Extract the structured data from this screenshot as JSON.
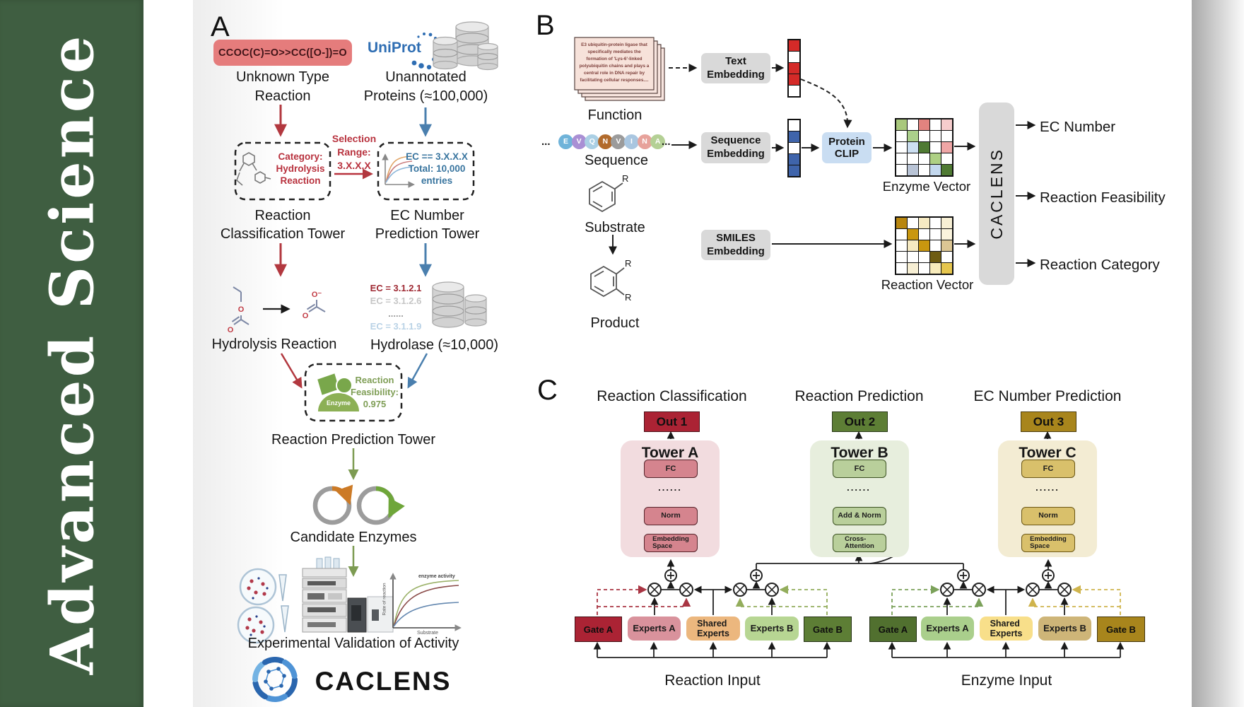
{
  "journal": {
    "name": "Advanced  Science"
  },
  "panelA": {
    "label": "A",
    "smiles": "CCOC(C)=O>>CC([O-])=O",
    "unknown_type": [
      "Unknown Type",
      "Reaction"
    ],
    "uniprot": "UniProt",
    "unannotated": [
      "Unannotated",
      "Proteins (≈100,000)"
    ],
    "selection": [
      "Selection",
      "Range:",
      "3.X.X.X"
    ],
    "classification_box": [
      "Category:",
      "Hydrolysis",
      "Reaction"
    ],
    "ec_box": [
      "EC == 3.X.X.X",
      "Total: 10,000",
      "entries"
    ],
    "classification_tower": [
      "Reaction",
      "Classification Tower"
    ],
    "prediction_tower": [
      "EC Number",
      "Prediction Tower"
    ],
    "hydrolysis_reaction": "Hydrolysis Reaction",
    "ec_list": [
      {
        "text": "EC = 3.1.2.1",
        "color": "#9e2832"
      },
      {
        "text": "EC = 3.1.2.6",
        "color": "#c6c6c6"
      },
      {
        "text": "......",
        "color": "#9a9a9a"
      },
      {
        "text": "EC = 3.1.1.9",
        "color": "#b9d2e6"
      }
    ],
    "hydrolase": "Hydrolase (≈10,000)",
    "enzyme_badge": "Enzyme",
    "feasibility": [
      "Reaction",
      "Feasibility:",
      "0.975"
    ],
    "reaction_prediction_tower": "Reaction Prediction Tower",
    "candidate_enzymes": "Candidate Enzymes",
    "validation": "Experimental Validation of Activity",
    "activity_plot": {
      "title": "enzyme activity",
      "xlabel": "Substrate",
      "ylabel": "Rate of reaction"
    },
    "wordmark": "CACLENS",
    "atoms": {
      "o": "O",
      "o_minus": "O⁻"
    }
  },
  "panelB": {
    "label": "B",
    "function_card": "E3 ubiquitin-protein ligase that specifically mediates the formation of 'Lys-6'-linked polyubiquitin chains and plays a central role in DNA repair by facilitating cellular responses....",
    "function_label": "Function",
    "ellipsis": "...",
    "residues": [
      {
        "letter": "E",
        "color": "#6fb3d9"
      },
      {
        "letter": "V",
        "color": "#a98fd4"
      },
      {
        "letter": "Q",
        "color": "#aacfe4"
      },
      {
        "letter": "N",
        "color": "#b26b2c"
      },
      {
        "letter": "V",
        "color": "#9b9b9b"
      },
      {
        "letter": "I",
        "color": "#a9c6e0"
      },
      {
        "letter": "N",
        "color": "#e7a29b"
      },
      {
        "letter": "A",
        "color": "#b4d095"
      }
    ],
    "sequence_label": "Sequence",
    "substrate_label": "Substrate",
    "product_label": "Product",
    "r_group": "R",
    "text_embedding": "Text\nEmbedding",
    "sequence_embedding": "Sequence\nEmbedding",
    "smiles_embedding": "SMILES\nEmbedding",
    "protein_clip": "Protein\nCLIP",
    "text_vector": [
      "#d42a28",
      "#ffffff",
      "#d42a28",
      "#d42a28",
      "#ffffff"
    ],
    "sequence_vector": [
      "#ffffff",
      "#3f64ab",
      "#ffffff",
      "#3f64ab",
      "#3f64ab"
    ],
    "enzyme_matrix": [
      [
        "#a9c87d",
        "#ffffff",
        "#e2837f",
        "#ffffff",
        "#f6cdcd"
      ],
      [
        "#ffffff",
        "#abd08b",
        "#ffffff",
        "#ffffff",
        "#ffffff"
      ],
      [
        "#ffffff",
        "#ccdff1",
        "#4f7a33",
        "#ffffff",
        "#efa6a6"
      ],
      [
        "#ffffff",
        "#ffffff",
        "#ffffff",
        "#aed084",
        "#ffffff"
      ],
      [
        "#ffffff",
        "#b9c4d6",
        "#ffffff",
        "#c3d8ee",
        "#4f7a33"
      ]
    ],
    "reaction_matrix": [
      [
        "#b8860f",
        "#ffffff",
        "#f6eac2",
        "#ffffff",
        "#f7efd4"
      ],
      [
        "#ffffff",
        "#c9970f",
        "#ffffff",
        "#ffffff",
        "#fbf4dd"
      ],
      [
        "#ffffff",
        "#f6eac2",
        "#c9970f",
        "#ffffff",
        "#dcc694"
      ],
      [
        "#ffffff",
        "#ffffff",
        "#ffffff",
        "#6e5c12",
        "#ffffff"
      ],
      [
        "#ffffff",
        "#f7efd4",
        "#ffffff",
        "#f8ecbc",
        "#e6c64e"
      ]
    ],
    "enzyme_vector_label": "Enzyme Vector",
    "reaction_vector_label": "Reaction Vector",
    "model_name": "CACLENS",
    "outputs": [
      "EC Number",
      "Reaction Feasibility",
      "Reaction Category"
    ]
  },
  "panelC": {
    "label": "C",
    "headings": [
      "Reaction Classification",
      "Reaction Prediction",
      "EC Number Prediction"
    ],
    "towers": [
      {
        "out": "Out 1",
        "name": "Tower A",
        "fc": "FC",
        "dots": "......",
        "mid": "Norm",
        "bottom": "Embedding\nSpace"
      },
      {
        "out": "Out 2",
        "name": "Tower B",
        "fc": "FC",
        "dots": "......",
        "mid": "Add & Norm",
        "bottom": "Cross-\nAttention"
      },
      {
        "out": "Out 3",
        "name": "Tower C",
        "fc": "FC",
        "dots": "......",
        "mid": "Norm",
        "bottom": "Embedding\nSpace"
      }
    ],
    "moe": [
      {
        "gate_a": "Gate A",
        "experts_a": "Experts A",
        "shared": "Shared\nExperts",
        "experts_b": "Experts B",
        "gate_b": "Gate B",
        "input": "Reaction Input"
      },
      {
        "gate_a": "Gate A",
        "experts_a": "Experts A",
        "shared": "Shared\nExperts",
        "experts_b": "Experts B",
        "gate_b": "Gate B",
        "input": "Enzyme Input"
      }
    ]
  }
}
